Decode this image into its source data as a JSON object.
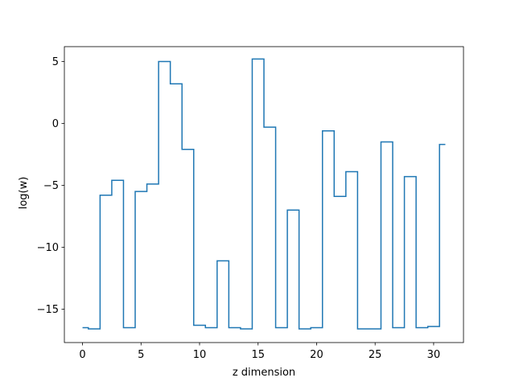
{
  "chart_data": {
    "type": "line",
    "drawstyle": "steps-mid",
    "title": "",
    "xlabel": "z dimension",
    "ylabel": "log(w)",
    "xlim": [
      -1.55,
      32.55
    ],
    "ylim": [
      -17.7,
      6.2
    ],
    "grid": false,
    "legend": "none",
    "color": "#1f77b4",
    "x_ticks": [
      0,
      5,
      10,
      15,
      20,
      25,
      30
    ],
    "x_tick_labels": [
      "0",
      "5",
      "10",
      "15",
      "20",
      "25",
      "30"
    ],
    "y_ticks": [
      5,
      0,
      -5,
      -10,
      -15
    ],
    "y_tick_labels": [
      "5",
      "0",
      "−5",
      "−10",
      "−15"
    ],
    "series": [
      {
        "x": [
          0,
          1,
          2,
          3,
          4,
          5,
          6,
          7,
          8,
          9,
          10,
          11,
          12,
          13,
          14,
          15,
          16,
          17,
          18,
          19,
          20,
          21,
          22,
          23,
          24,
          25,
          26,
          27,
          28,
          29,
          30,
          31
        ],
        "values": [
          -16.5,
          -16.6,
          -5.8,
          -4.6,
          -16.5,
          -5.5,
          -4.9,
          5.0,
          3.2,
          -2.1,
          -16.3,
          -16.5,
          -11.1,
          -16.5,
          -16.6,
          5.2,
          -0.3,
          -16.5,
          -7.0,
          -16.6,
          -16.5,
          -0.6,
          -5.9,
          -3.9,
          -16.6,
          -16.6,
          -1.5,
          -16.5,
          -4.3,
          -16.5,
          -16.4,
          -1.7
        ]
      }
    ]
  }
}
